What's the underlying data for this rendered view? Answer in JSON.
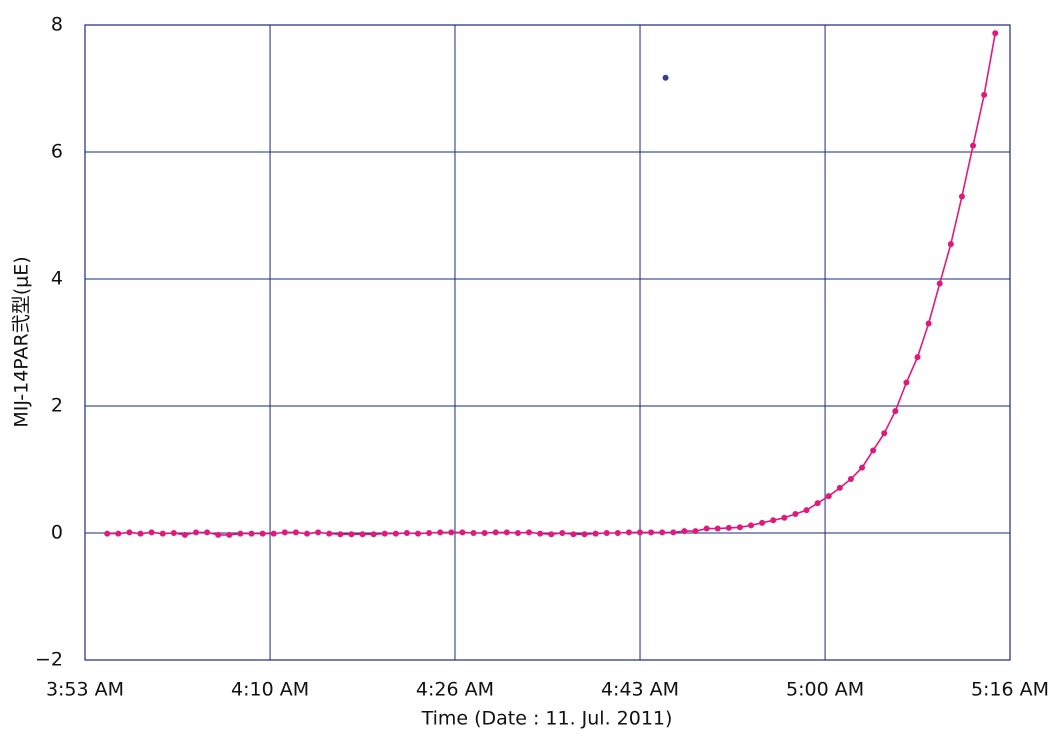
{
  "chart_data": {
    "type": "line",
    "xlabel": "Time (Date : 11. Jul. 2011)",
    "ylabel": "MIJ-14PAR弐型(μE)",
    "xlim": [
      233,
      316.33
    ],
    "xticks": [
      {
        "value": 233,
        "label": "3:53 AM"
      },
      {
        "value": 249.67,
        "label": "4:10 AM"
      },
      {
        "value": 266.33,
        "label": "4:26 AM"
      },
      {
        "value": 283,
        "label": "4:43 AM"
      },
      {
        "value": 299.67,
        "label": "5:00 AM"
      },
      {
        "value": 316.33,
        "label": "5:16 AM"
      }
    ],
    "ylim": [
      -2,
      8
    ],
    "yticks": [
      {
        "value": -2,
        "label": "−2"
      },
      0,
      2,
      4,
      6,
      8
    ],
    "grid": true,
    "series": [
      {
        "color": "#e0197d",
        "x": [
          235,
          236,
          237,
          238,
          239,
          240,
          241,
          242,
          243,
          244,
          245,
          246,
          247,
          248,
          249,
          250,
          251,
          252,
          253,
          254,
          255,
          256,
          257,
          258,
          259,
          260,
          261,
          262,
          263,
          264,
          265,
          266,
          267,
          268,
          269,
          270,
          271,
          272,
          273,
          274,
          275,
          276,
          277,
          278,
          279,
          280,
          281,
          282,
          283,
          284,
          285,
          286,
          287,
          288,
          289,
          290,
          291,
          292,
          293,
          294,
          295,
          296,
          297,
          298,
          299,
          300,
          301,
          302,
          303,
          304,
          305,
          306,
          307,
          308,
          309,
          310,
          311,
          312,
          313,
          314,
          315
        ],
        "values": [
          -0.01,
          -0.01,
          0.01,
          -0.01,
          0.01,
          -0.01,
          0.0,
          -0.03,
          0.01,
          0.01,
          -0.03,
          -0.03,
          -0.01,
          -0.01,
          -0.01,
          -0.01,
          0.01,
          0.01,
          -0.01,
          0.01,
          -0.01,
          -0.02,
          -0.02,
          -0.02,
          -0.02,
          -0.01,
          -0.01,
          0.0,
          -0.01,
          0.0,
          0.01,
          0.01,
          0.01,
          0.0,
          0.0,
          0.01,
          0.01,
          0.0,
          0.01,
          -0.01,
          -0.02,
          0.0,
          -0.02,
          -0.02,
          -0.01,
          0.0,
          0.0,
          0.01,
          0.01,
          0.01,
          0.01,
          0.01,
          0.03,
          0.03,
          0.07,
          0.07,
          0.08,
          0.09,
          0.12,
          0.16,
          0.2,
          0.24,
          0.3,
          0.36,
          0.47,
          0.58,
          0.71,
          0.85,
          1.03,
          1.3,
          1.57,
          1.92,
          2.37,
          2.77,
          3.3,
          3.93,
          4.55,
          5.3,
          6.1,
          6.9,
          7.87
        ]
      },
      {
        "color": "#3c3c8c",
        "x": [
          285.3
        ],
        "values": [
          7.17
        ]
      }
    ]
  }
}
